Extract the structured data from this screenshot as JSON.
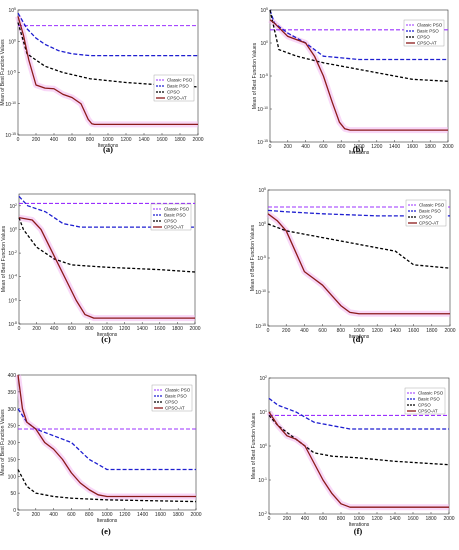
{
  "colors": {
    "classic_pso": "#9b30ff",
    "basic_pso": "#1f1fd0",
    "cpso": "#000000",
    "cpso_at": "#8b1a1a",
    "shade": "#f3b6f0"
  },
  "chart_data": [
    {
      "panel_label": "(a)",
      "type": "line",
      "yscale": "log",
      "xlabel": "Iterations",
      "ylabel": "Mean of Best Function Values",
      "xlim": [
        0,
        2000
      ],
      "xticks": [
        0,
        200,
        400,
        600,
        800,
        1000,
        1200,
        1400,
        1600,
        1800,
        2000
      ],
      "ylim": [
        -15,
        5
      ],
      "ytick_exps": [
        5,
        0,
        -5,
        -10,
        -15
      ],
      "legend": "right",
      "series": [
        {
          "name": "Classic PSO",
          "x": [
            0,
            2000
          ],
          "y": [
            2.5,
            2.5
          ]
        },
        {
          "name": "Basic PSO",
          "x": [
            0,
            100,
            200,
            300,
            450,
            600,
            800,
            2000
          ],
          "y": [
            4.5,
            2,
            0.5,
            -0.5,
            -1.5,
            -2,
            -2.3,
            -2.3
          ]
        },
        {
          "name": "CPSO",
          "x": [
            0,
            100,
            300,
            500,
            800,
            1200,
            1600,
            2000
          ],
          "y": [
            3,
            -2,
            -4,
            -5,
            -6,
            -6.6,
            -7,
            -7.3
          ]
        },
        {
          "name": "CPSO-AT",
          "x": [
            0,
            60,
            120,
            200,
            300,
            400,
            500,
            600,
            700,
            780,
            820,
            850,
            1000,
            2000
          ],
          "y": [
            4,
            1,
            -3,
            -7,
            -7.5,
            -7.6,
            -8.5,
            -9,
            -10,
            -12.5,
            -13.2,
            -13.3,
            -13.3,
            -13.3
          ]
        }
      ]
    },
    {
      "panel_label": "(b)",
      "type": "line",
      "yscale": "log",
      "xlabel": "Iterations",
      "ylabel": "Mean of Best Function Values",
      "xlim": [
        0,
        2000
      ],
      "xticks": [
        0,
        200,
        400,
        600,
        800,
        1000,
        1200,
        1400,
        1600,
        1800,
        2000
      ],
      "ylim": [
        -15,
        5
      ],
      "ytick_exps": [
        5,
        0,
        -5,
        -10,
        -15
      ],
      "legend": "top-right",
      "series": [
        {
          "name": "Classic PSO",
          "x": [
            0,
            2000
          ],
          "y": [
            2,
            2
          ]
        },
        {
          "name": "Basic PSO",
          "x": [
            0,
            50,
            200,
            400,
            600,
            1000,
            2000
          ],
          "y": [
            5,
            3,
            1.5,
            0,
            -2,
            -2.5,
            -2.5
          ]
        },
        {
          "name": "CPSO",
          "x": [
            0,
            50,
            100,
            300,
            600,
            1000,
            1600,
            2000
          ],
          "y": [
            5,
            2,
            -1,
            -2,
            -3,
            -4,
            -5.5,
            -5.8
          ]
        },
        {
          "name": "CPSO-AT",
          "x": [
            0,
            50,
            200,
            400,
            500,
            600,
            700,
            780,
            840,
            900,
            2000
          ],
          "y": [
            3.5,
            3,
            1,
            0,
            -2,
            -5,
            -9,
            -12,
            -13,
            -13.2,
            -13.2
          ]
        }
      ]
    },
    {
      "panel_label": "(c)",
      "type": "line",
      "yscale": "log",
      "xlabel": "Iterations",
      "ylabel": "Mean of Best Function Values",
      "xlim": [
        0,
        2000
      ],
      "xticks": [
        0,
        200,
        400,
        600,
        800,
        1000,
        1200,
        1400,
        1600,
        1800,
        2000
      ],
      "ylim": [
        -8,
        3
      ],
      "ytick_exps": [
        2,
        0,
        -2,
        -4,
        -6,
        -8
      ],
      "legend": "top-right",
      "series": [
        {
          "name": "Classic PSO",
          "x": [
            0,
            2000
          ],
          "y": [
            2.2,
            2.2
          ]
        },
        {
          "name": "Basic PSO",
          "x": [
            0,
            100,
            300,
            500,
            700,
            2000
          ],
          "y": [
            2.8,
            2,
            1.5,
            0.5,
            0.2,
            0.2
          ]
        },
        {
          "name": "CPSO",
          "x": [
            0,
            50,
            200,
            400,
            600,
            800,
            1000,
            1600,
            2000
          ],
          "y": [
            1,
            0,
            -1.5,
            -2.5,
            -3,
            -3.1,
            -3.2,
            -3.4,
            -3.6
          ]
        },
        {
          "name": "CPSO-AT",
          "x": [
            0,
            150,
            250,
            350,
            450,
            550,
            650,
            750,
            850,
            950,
            2000
          ],
          "y": [
            1,
            0.8,
            0,
            -1.5,
            -3,
            -4.5,
            -6,
            -7.2,
            -7.5,
            -7.5,
            -7.5
          ]
        }
      ]
    },
    {
      "panel_label": "(d)",
      "type": "line",
      "yscale": "log",
      "xlabel": "Iterations",
      "ylabel": "Mean of Best Function Values",
      "xlim": [
        0,
        2000
      ],
      "xticks": [
        0,
        200,
        400,
        600,
        800,
        1000,
        1200,
        1400,
        1600,
        1800,
        2000
      ],
      "ylim": [
        -15,
        5
      ],
      "ytick_exps": [
        5,
        0,
        -5,
        -10,
        -15
      ],
      "legend": "top-right",
      "series": [
        {
          "name": "Classic PSO",
          "x": [
            0,
            2000
          ],
          "y": [
            2.5,
            2.5
          ]
        },
        {
          "name": "Basic PSO",
          "x": [
            0,
            200,
            600,
            1200,
            2000
          ],
          "y": [
            2,
            1.8,
            1.5,
            1.2,
            1.2
          ]
        },
        {
          "name": "CPSO",
          "x": [
            0,
            200,
            600,
            1000,
            1400,
            1600,
            2000
          ],
          "y": [
            0,
            -1,
            -2,
            -3,
            -4,
            -6,
            -6.5
          ]
        },
        {
          "name": "CPSO-AT",
          "x": [
            0,
            100,
            200,
            300,
            400,
            500,
            600,
            700,
            800,
            900,
            1000,
            2000
          ],
          "y": [
            1.5,
            0.5,
            -1,
            -4,
            -7,
            -8,
            -9,
            -10.5,
            -12,
            -13,
            -13.2,
            -13.2
          ]
        }
      ]
    },
    {
      "panel_label": "(e)",
      "type": "line",
      "yscale": "linear",
      "xlabel": "Iterations",
      "ylabel": "Mean of Best Function Values",
      "xlim": [
        0,
        2000
      ],
      "xticks": [
        0,
        200,
        400,
        600,
        800,
        1000,
        1200,
        1400,
        1600,
        1800,
        2000
      ],
      "ylim": [
        0,
        400
      ],
      "yticks": [
        0,
        50,
        100,
        150,
        200,
        250,
        300,
        350,
        400
      ],
      "legend": "top-right",
      "series": [
        {
          "name": "Classic PSO",
          "x": [
            0,
            2000
          ],
          "y": [
            240,
            240
          ]
        },
        {
          "name": "Basic PSO",
          "x": [
            0,
            100,
            200,
            400,
            600,
            800,
            1000,
            2000
          ],
          "y": [
            300,
            260,
            240,
            220,
            200,
            150,
            120,
            120
          ]
        },
        {
          "name": "CPSO",
          "x": [
            0,
            100,
            200,
            400,
            600,
            1000,
            1400,
            2000
          ],
          "y": [
            120,
            70,
            50,
            40,
            35,
            30,
            28,
            25
          ]
        },
        {
          "name": "CPSO-AT",
          "x": [
            0,
            50,
            100,
            200,
            300,
            400,
            500,
            600,
            700,
            800,
            900,
            1000,
            2000
          ],
          "y": [
            400,
            300,
            260,
            240,
            200,
            180,
            150,
            110,
            80,
            60,
            45,
            40,
            40
          ]
        }
      ]
    },
    {
      "panel_label": "(f)",
      "type": "line",
      "yscale": "log",
      "xlabel": "Iterations",
      "ylabel": "Mean of Best Function Values",
      "xlim": [
        0,
        2000
      ],
      "xticks": [
        0,
        200,
        400,
        600,
        800,
        1000,
        1200,
        1400,
        1600,
        1800,
        2000
      ],
      "ylim": [
        -2,
        2
      ],
      "ytick_exps": [
        2,
        1,
        0,
        -1,
        -2
      ],
      "legend": "top-right",
      "series": [
        {
          "name": "Classic PSO",
          "x": [
            0,
            2000
          ],
          "y": [
            0.9,
            0.9
          ]
        },
        {
          "name": "Basic PSO",
          "x": [
            0,
            100,
            300,
            500,
            700,
            900,
            2000
          ],
          "y": [
            1.4,
            1.2,
            1,
            0.7,
            0.6,
            0.5,
            0.5
          ]
        },
        {
          "name": "CPSO",
          "x": [
            0,
            100,
            300,
            500,
            700,
            1000,
            1400,
            2000
          ],
          "y": [
            0.9,
            0.6,
            0.2,
            -0.2,
            -0.3,
            -0.35,
            -0.45,
            -0.55
          ]
        },
        {
          "name": "CPSO-AT",
          "x": [
            0,
            100,
            200,
            300,
            400,
            500,
            600,
            700,
            800,
            900,
            1000,
            2000
          ],
          "y": [
            1,
            0.6,
            0.3,
            0.2,
            0,
            -0.5,
            -1,
            -1.4,
            -1.7,
            -1.8,
            -1.8,
            -1.8
          ]
        }
      ]
    }
  ]
}
